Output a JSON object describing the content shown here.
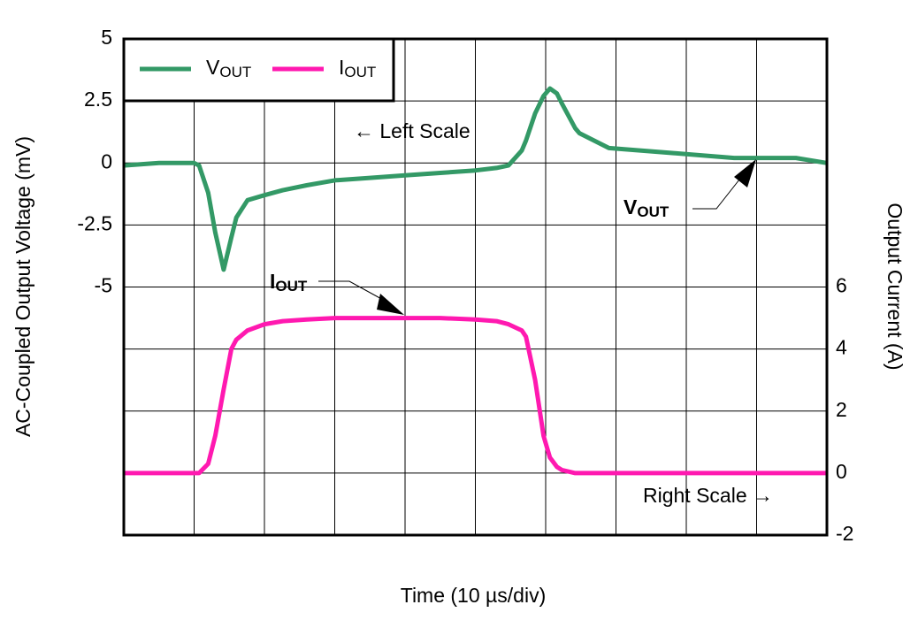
{
  "chart_data": {
    "type": "line",
    "x_label": "Time (10 µs/div)",
    "y_label": "AC-Coupled Output Voltage (mV)",
    "y2_label": "Output Current (A)",
    "xlim": [
      0,
      100
    ],
    "ylim": [
      -15,
      5
    ],
    "yticks": [
      5,
      2.5,
      0,
      -2.5,
      -5
    ],
    "y2lim": [
      -2,
      14
    ],
    "y2ticks": [
      6,
      4,
      2,
      0,
      -2
    ],
    "grid": true,
    "legend": "upper left",
    "x": [
      0,
      5,
      10,
      10.7,
      12,
      13,
      14.2,
      15.3,
      16,
      17.6,
      20,
      22.6,
      26,
      30,
      35,
      40,
      45,
      50,
      53,
      54.7,
      56.6,
      57.2,
      58.5,
      59.7,
      60.6,
      61.6,
      62.3,
      64.2,
      64.8,
      69,
      78,
      86.8,
      95.6,
      100
    ],
    "series": [
      {
        "name": "VOUT",
        "color": "#339966",
        "values": [
          -0.1,
          0,
          0,
          -0.1,
          -1.2,
          -2.8,
          -4.3,
          -3.0,
          -2.2,
          -1.5,
          -1.3,
          -1.1,
          -0.9,
          -0.7,
          -0.6,
          -0.5,
          -0.4,
          -0.3,
          -0.2,
          -0.1,
          0.5,
          0.9,
          2.0,
          2.7,
          3.0,
          2.8,
          2.4,
          1.4,
          1.2,
          0.6,
          0.4,
          0.2,
          0.2,
          0
        ]
      },
      {
        "name": "IOUT",
        "color": "#ff19b0",
        "axis": "y2",
        "values": [
          0,
          0,
          0,
          0,
          0.3,
          1.2,
          2.7,
          4.0,
          4.3,
          4.6,
          4.8,
          4.9,
          4.95,
          5.0,
          5.0,
          5.0,
          5.0,
          4.95,
          4.9,
          4.8,
          4.6,
          4.4,
          3.0,
          1.2,
          0.5,
          0.2,
          0.1,
          0,
          0,
          0,
          0,
          0,
          0,
          0
        ]
      }
    ],
    "annotations": [
      {
        "text": "← Left Scale"
      },
      {
        "text": "VOUT"
      },
      {
        "text": "IOUT"
      },
      {
        "text": "Right Scale →"
      }
    ]
  }
}
